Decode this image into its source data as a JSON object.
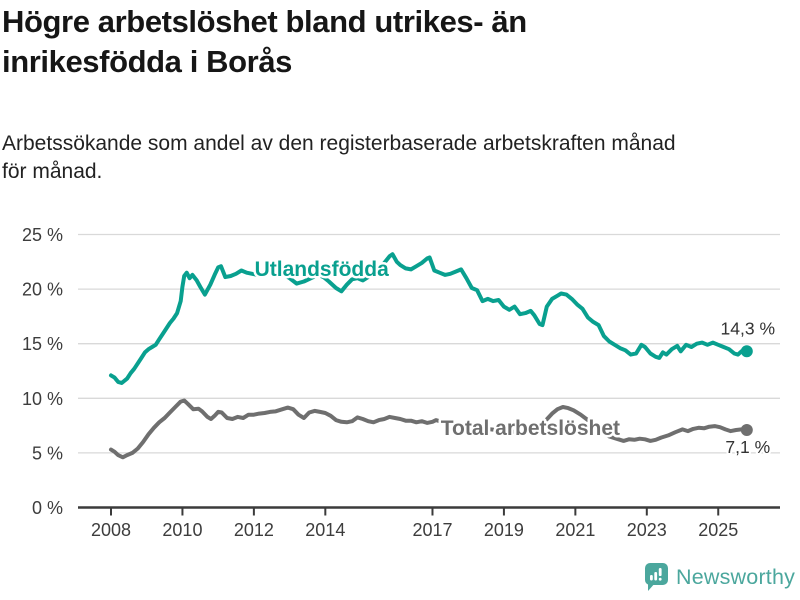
{
  "branding": {
    "name": "Newsworthy",
    "color": "#4BA79D"
  },
  "chart_data": {
    "type": "line",
    "title": "Högre arbetslöshet bland utrikes- än\ninrikesfödda i Borås",
    "subtitle": "Arbetssökande som andel av den registerbaserade arbetskraften månad\nför månad.",
    "unit": "%",
    "grid": "horizontal-only",
    "legend": "inline-series-labels",
    "xlim": [
      2007.1,
      2026.7
    ],
    "ylim": [
      0,
      25
    ],
    "xticks": [
      {
        "value": 2008,
        "label": "2008"
      },
      {
        "value": 2010,
        "label": "2010"
      },
      {
        "value": 2012,
        "label": "2012"
      },
      {
        "value": 2014,
        "label": "2014"
      },
      {
        "value": 2017,
        "label": "2017"
      },
      {
        "value": 2019,
        "label": "2019"
      },
      {
        "value": 2021,
        "label": "2021"
      },
      {
        "value": 2023,
        "label": "2023"
      },
      {
        "value": 2025,
        "label": "2025"
      }
    ],
    "yticks": [
      {
        "value": 0,
        "label": "0 %"
      },
      {
        "value": 5,
        "label": "5 %"
      },
      {
        "value": 10,
        "label": "10 %"
      },
      {
        "value": 15,
        "label": "15 %"
      },
      {
        "value": 20,
        "label": "20 %"
      },
      {
        "value": 25,
        "label": "25 %"
      }
    ],
    "series": [
      {
        "name": "Utlandsfödda",
        "color": "#09A08F",
        "label_at": {
          "x": 2013.9,
          "y": 21.85
        },
        "end_label": {
          "text": "14,3 %",
          "position": "above"
        },
        "end_value": 14.3,
        "points": [
          [
            2008.0,
            12.1
          ],
          [
            2008.1,
            11.9
          ],
          [
            2008.2,
            11.5
          ],
          [
            2008.3,
            11.4
          ],
          [
            2008.45,
            11.8
          ],
          [
            2008.55,
            12.3
          ],
          [
            2008.65,
            12.7
          ],
          [
            2008.75,
            13.2
          ],
          [
            2008.85,
            13.7
          ],
          [
            2008.95,
            14.2
          ],
          [
            2009.05,
            14.5
          ],
          [
            2009.15,
            14.7
          ],
          [
            2009.25,
            14.9
          ],
          [
            2009.35,
            15.4
          ],
          [
            2009.45,
            15.9
          ],
          [
            2009.55,
            16.4
          ],
          [
            2009.65,
            16.9
          ],
          [
            2009.75,
            17.3
          ],
          [
            2009.85,
            17.8
          ],
          [
            2009.95,
            18.9
          ],
          [
            2010.0,
            20.2
          ],
          [
            2010.05,
            21.2
          ],
          [
            2010.12,
            21.5
          ],
          [
            2010.2,
            21.0
          ],
          [
            2010.28,
            21.3
          ],
          [
            2010.4,
            20.8
          ],
          [
            2010.5,
            20.2
          ],
          [
            2010.63,
            19.5
          ],
          [
            2010.78,
            20.4
          ],
          [
            2010.9,
            21.3
          ],
          [
            2011.0,
            22.0
          ],
          [
            2011.08,
            22.1
          ],
          [
            2011.2,
            21.1
          ],
          [
            2011.35,
            21.2
          ],
          [
            2011.5,
            21.4
          ],
          [
            2011.65,
            21.7
          ],
          [
            2011.8,
            21.5
          ],
          [
            2011.95,
            21.4
          ],
          [
            2012.1,
            21.3
          ],
          [
            2012.3,
            21.5
          ],
          [
            2012.5,
            21.6
          ],
          [
            2012.7,
            21.5
          ],
          [
            2012.85,
            21.3
          ],
          [
            2013.0,
            21.0
          ],
          [
            2013.2,
            20.5
          ],
          [
            2013.4,
            20.7
          ],
          [
            2013.6,
            21.0
          ],
          [
            2013.8,
            21.3
          ],
          [
            2013.95,
            21.1
          ],
          [
            2014.1,
            20.7
          ],
          [
            2014.3,
            20.1
          ],
          [
            2014.45,
            19.8
          ],
          [
            2014.6,
            20.4
          ],
          [
            2014.75,
            20.9
          ],
          [
            2014.9,
            21.0
          ],
          [
            2015.05,
            20.8
          ],
          [
            2015.2,
            21.1
          ],
          [
            2015.35,
            21.5
          ],
          [
            2015.5,
            21.9
          ],
          [
            2015.65,
            22.4
          ],
          [
            2015.8,
            23.0
          ],
          [
            2015.88,
            23.2
          ],
          [
            2016.0,
            22.5
          ],
          [
            2016.1,
            22.2
          ],
          [
            2016.25,
            21.9
          ],
          [
            2016.4,
            21.8
          ],
          [
            2016.55,
            22.1
          ],
          [
            2016.7,
            22.4
          ],
          [
            2016.85,
            22.8
          ],
          [
            2016.92,
            22.9
          ],
          [
            2017.05,
            21.7
          ],
          [
            2017.2,
            21.5
          ],
          [
            2017.35,
            21.3
          ],
          [
            2017.5,
            21.4
          ],
          [
            2017.65,
            21.6
          ],
          [
            2017.8,
            21.8
          ],
          [
            2017.95,
            21.0
          ],
          [
            2018.1,
            20.1
          ],
          [
            2018.25,
            19.9
          ],
          [
            2018.4,
            18.9
          ],
          [
            2018.55,
            19.1
          ],
          [
            2018.7,
            18.9
          ],
          [
            2018.85,
            19.0
          ],
          [
            2019.0,
            18.4
          ],
          [
            2019.15,
            18.1
          ],
          [
            2019.3,
            18.4
          ],
          [
            2019.45,
            17.7
          ],
          [
            2019.6,
            17.8
          ],
          [
            2019.75,
            18.0
          ],
          [
            2019.85,
            17.6
          ],
          [
            2020.0,
            16.8
          ],
          [
            2020.08,
            16.7
          ],
          [
            2020.2,
            18.4
          ],
          [
            2020.35,
            19.1
          ],
          [
            2020.5,
            19.4
          ],
          [
            2020.6,
            19.6
          ],
          [
            2020.75,
            19.5
          ],
          [
            2020.9,
            19.1
          ],
          [
            2021.05,
            18.6
          ],
          [
            2021.2,
            18.2
          ],
          [
            2021.35,
            17.4
          ],
          [
            2021.5,
            17.0
          ],
          [
            2021.65,
            16.7
          ],
          [
            2021.8,
            15.7
          ],
          [
            2021.95,
            15.2
          ],
          [
            2022.1,
            14.9
          ],
          [
            2022.25,
            14.6
          ],
          [
            2022.4,
            14.4
          ],
          [
            2022.55,
            14.0
          ],
          [
            2022.7,
            14.1
          ],
          [
            2022.85,
            14.9
          ],
          [
            2022.95,
            14.7
          ],
          [
            2023.1,
            14.1
          ],
          [
            2023.25,
            13.8
          ],
          [
            2023.35,
            13.7
          ],
          [
            2023.45,
            14.2
          ],
          [
            2023.55,
            14.0
          ],
          [
            2023.7,
            14.5
          ],
          [
            2023.85,
            14.8
          ],
          [
            2023.95,
            14.3
          ],
          [
            2024.1,
            14.9
          ],
          [
            2024.25,
            14.7
          ],
          [
            2024.4,
            15.0
          ],
          [
            2024.55,
            15.1
          ],
          [
            2024.7,
            14.9
          ],
          [
            2024.85,
            15.1
          ],
          [
            2025.0,
            14.9
          ],
          [
            2025.15,
            14.7
          ],
          [
            2025.3,
            14.5
          ],
          [
            2025.45,
            14.1
          ],
          [
            2025.55,
            14.0
          ],
          [
            2025.65,
            14.3
          ],
          [
            2025.8,
            14.3
          ]
        ]
      },
      {
        "name": "Total arbetslöshet",
        "color": "#6F6F6F",
        "label_at": {
          "x": 2019.74,
          "y": 7.3
        },
        "end_label": {
          "text": "7,1 %",
          "position": "below"
        },
        "end_value": 7.1,
        "points": [
          [
            2008.0,
            5.3
          ],
          [
            2008.1,
            5.1
          ],
          [
            2008.2,
            4.8
          ],
          [
            2008.33,
            4.6
          ],
          [
            2008.45,
            4.8
          ],
          [
            2008.6,
            5.0
          ],
          [
            2008.75,
            5.4
          ],
          [
            2008.9,
            6.0
          ],
          [
            2009.05,
            6.7
          ],
          [
            2009.2,
            7.3
          ],
          [
            2009.35,
            7.8
          ],
          [
            2009.5,
            8.2
          ],
          [
            2009.65,
            8.7
          ],
          [
            2009.8,
            9.2
          ],
          [
            2009.95,
            9.7
          ],
          [
            2010.05,
            9.8
          ],
          [
            2010.15,
            9.5
          ],
          [
            2010.3,
            9.0
          ],
          [
            2010.45,
            9.05
          ],
          [
            2010.55,
            8.8
          ],
          [
            2010.7,
            8.3
          ],
          [
            2010.8,
            8.1
          ],
          [
            2010.9,
            8.4
          ],
          [
            2011.0,
            8.75
          ],
          [
            2011.1,
            8.7
          ],
          [
            2011.25,
            8.2
          ],
          [
            2011.4,
            8.1
          ],
          [
            2011.55,
            8.3
          ],
          [
            2011.7,
            8.2
          ],
          [
            2011.85,
            8.5
          ],
          [
            2012.0,
            8.5
          ],
          [
            2012.15,
            8.6
          ],
          [
            2012.3,
            8.65
          ],
          [
            2012.45,
            8.75
          ],
          [
            2012.6,
            8.8
          ],
          [
            2012.8,
            9.0
          ],
          [
            2012.95,
            9.15
          ],
          [
            2013.1,
            9.0
          ],
          [
            2013.25,
            8.5
          ],
          [
            2013.4,
            8.2
          ],
          [
            2013.55,
            8.7
          ],
          [
            2013.7,
            8.85
          ],
          [
            2013.85,
            8.75
          ],
          [
            2014.0,
            8.65
          ],
          [
            2014.15,
            8.4
          ],
          [
            2014.3,
            8.0
          ],
          [
            2014.45,
            7.85
          ],
          [
            2014.6,
            7.8
          ],
          [
            2014.75,
            7.9
          ],
          [
            2014.9,
            8.25
          ],
          [
            2015.05,
            8.1
          ],
          [
            2015.2,
            7.9
          ],
          [
            2015.35,
            7.8
          ],
          [
            2015.5,
            8.0
          ],
          [
            2015.65,
            8.1
          ],
          [
            2015.8,
            8.3
          ],
          [
            2015.95,
            8.2
          ],
          [
            2016.1,
            8.1
          ],
          [
            2016.25,
            7.95
          ],
          [
            2016.4,
            7.95
          ],
          [
            2016.55,
            7.8
          ],
          [
            2016.7,
            7.9
          ],
          [
            2016.85,
            7.75
          ],
          [
            2017.0,
            7.85
          ],
          [
            2017.1,
            8.0
          ],
          [
            2017.3,
            7.8
          ],
          [
            2017.6,
            7.6
          ],
          [
            2017.9,
            7.45
          ],
          [
            2018.2,
            7.3
          ],
          [
            2018.5,
            7.2
          ],
          [
            2018.8,
            7.1
          ],
          [
            2019.1,
            7.0
          ],
          [
            2019.4,
            6.9
          ],
          [
            2019.7,
            6.9
          ],
          [
            2019.95,
            7.1
          ],
          [
            2020.15,
            7.9
          ],
          [
            2020.35,
            8.6
          ],
          [
            2020.5,
            9.0
          ],
          [
            2020.65,
            9.2
          ],
          [
            2020.8,
            9.1
          ],
          [
            2020.95,
            8.9
          ],
          [
            2021.15,
            8.5
          ],
          [
            2021.35,
            8.0
          ],
          [
            2021.55,
            7.4
          ],
          [
            2021.75,
            6.9
          ],
          [
            2021.95,
            6.5
          ],
          [
            2022.15,
            6.3
          ],
          [
            2022.35,
            6.1
          ],
          [
            2022.5,
            6.25
          ],
          [
            2022.65,
            6.2
          ],
          [
            2022.8,
            6.3
          ],
          [
            2022.95,
            6.25
          ],
          [
            2023.1,
            6.1
          ],
          [
            2023.25,
            6.2
          ],
          [
            2023.4,
            6.4
          ],
          [
            2023.6,
            6.6
          ],
          [
            2023.8,
            6.9
          ],
          [
            2024.0,
            7.15
          ],
          [
            2024.15,
            7.0
          ],
          [
            2024.3,
            7.2
          ],
          [
            2024.45,
            7.3
          ],
          [
            2024.6,
            7.25
          ],
          [
            2024.75,
            7.4
          ],
          [
            2024.9,
            7.45
          ],
          [
            2025.05,
            7.35
          ],
          [
            2025.2,
            7.15
          ],
          [
            2025.35,
            7.0
          ],
          [
            2025.5,
            7.1
          ],
          [
            2025.65,
            7.15
          ],
          [
            2025.8,
            7.1
          ]
        ]
      }
    ]
  }
}
